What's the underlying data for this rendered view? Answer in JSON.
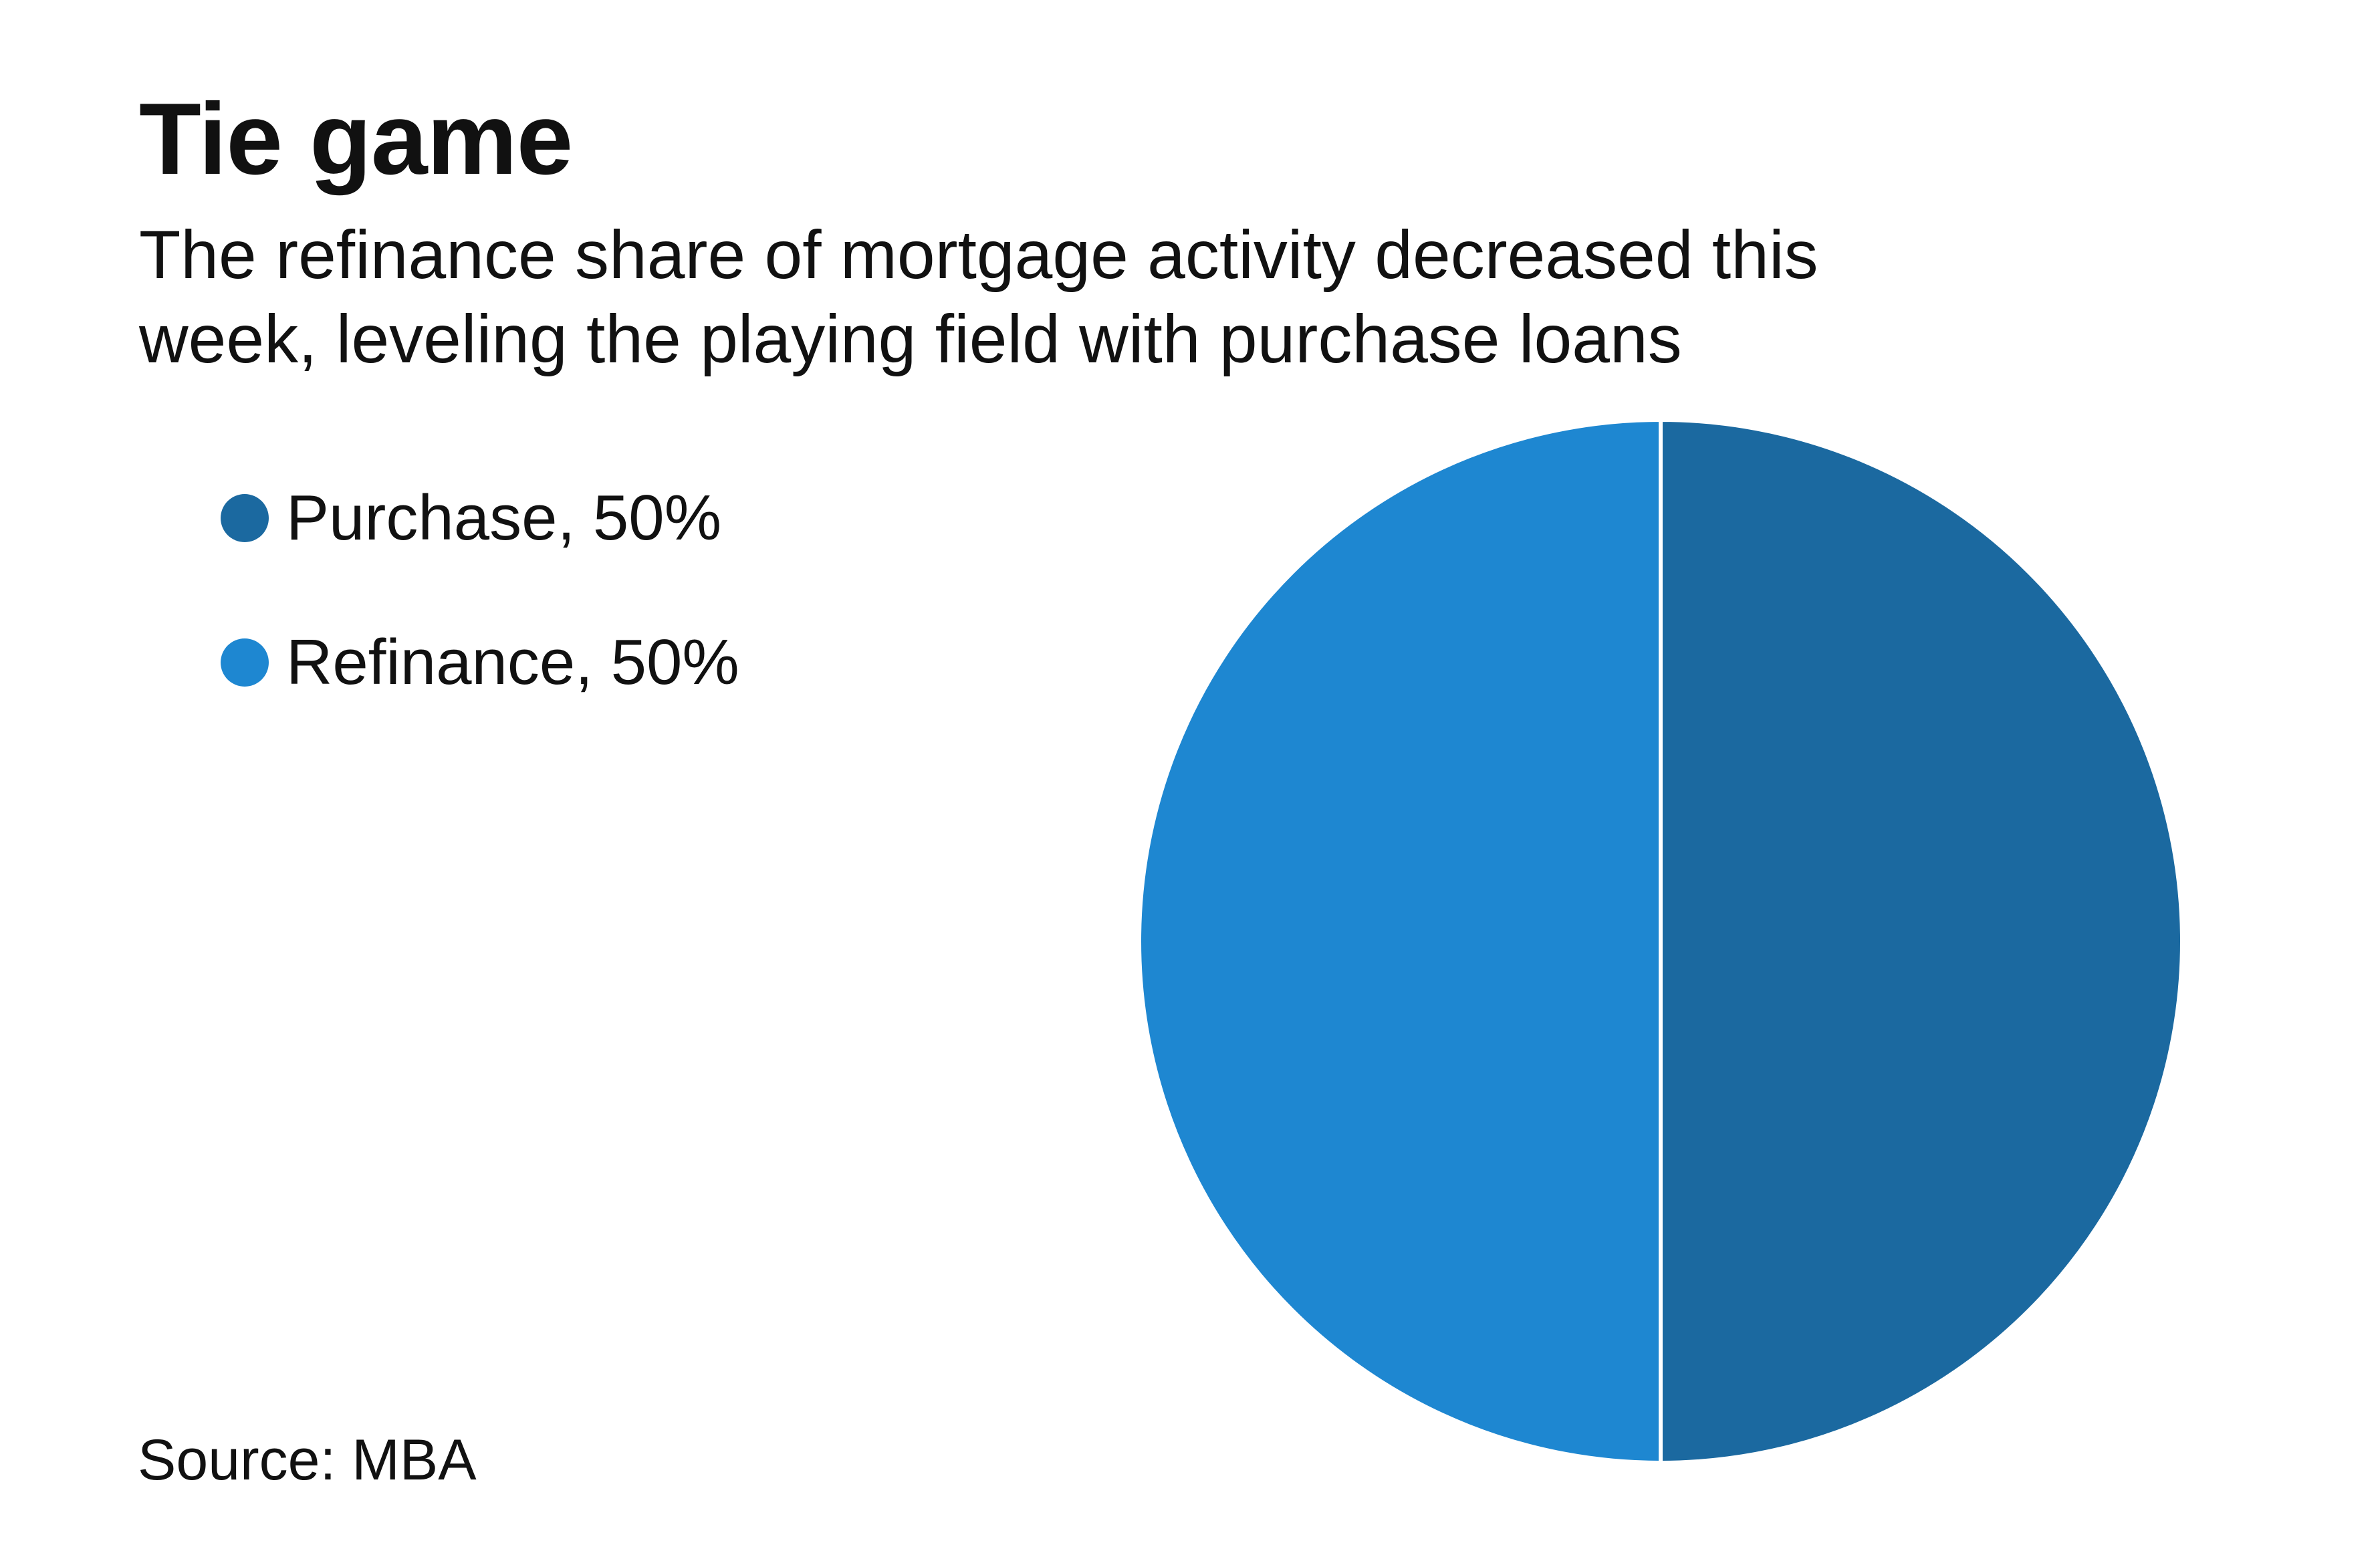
{
  "chart_data": {
    "type": "pie",
    "title": "Tie game",
    "subtitle_lines": [
      "The refinance share of mortgage activity decreased this",
      "week, leveling the playing field with purchase loans"
    ],
    "slices": [
      {
        "label": "Purchase",
        "value": 50,
        "legend_text": "Purchase, 50%",
        "color": "#1b69a0"
      },
      {
        "label": "Refinance",
        "value": 50,
        "legend_text": "Refinance, 50%",
        "color": "#1e87d1"
      }
    ],
    "legend_position": "top-left",
    "source": "Source: MBA"
  }
}
